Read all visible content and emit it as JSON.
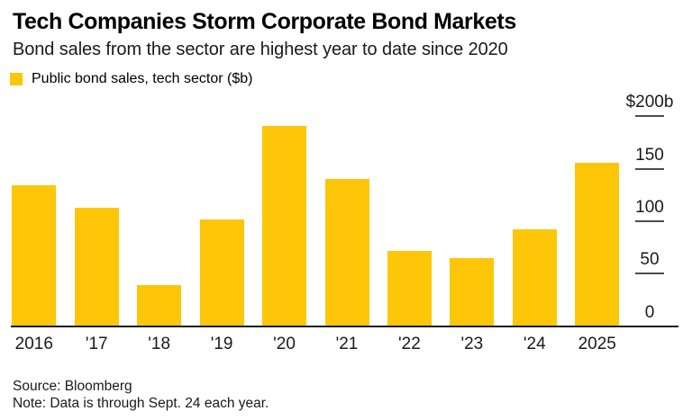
{
  "header": {
    "title": "Tech Companies Storm Corporate Bond Markets",
    "subtitle": "Bond sales from the sector are highest year to date since 2020"
  },
  "legend": {
    "label": "Public bond sales, tech sector ($b)",
    "swatch_color": "#fdc608"
  },
  "chart_data": {
    "type": "bar",
    "title": "Tech Companies Storm Corporate Bond Markets",
    "subtitle": "Bond sales from the sector are highest year to date since 2020",
    "series_name": "Public bond sales, tech sector ($b)",
    "categories": [
      "2016",
      "'17",
      "'18",
      "'19",
      "'20",
      "'21",
      "'22",
      "'23",
      "'24",
      "2025"
    ],
    "values": [
      134,
      113,
      39,
      102,
      191,
      140,
      72,
      65,
      92,
      156
    ],
    "unit": "$b",
    "ylim": [
      0,
      200
    ],
    "ytick_values": [
      200,
      150,
      100,
      50,
      0
    ],
    "ytick_labels": [
      "$200b",
      "150",
      "100",
      "50",
      "0"
    ],
    "axis_side": "right",
    "grid": false,
    "bar_color": "#fdc608",
    "axis_line_color": "#1a1a1a",
    "tick_color": "#4d4d4d"
  },
  "footer": {
    "source": "Source: Bloomberg",
    "note": "Note: Data is through Sept. 24 each year."
  }
}
